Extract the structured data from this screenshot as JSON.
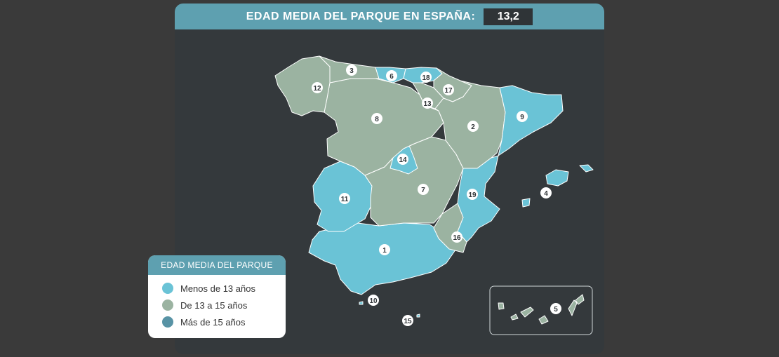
{
  "header": {
    "title": "EDAD MEDIA DEL PARQUE EN ESPAÑA:",
    "value": "13,2"
  },
  "legend": {
    "title": "EDAD MEDIA DEL PARQUE",
    "items": [
      {
        "label": "Menos de 13 años",
        "color": "#6ac3d6"
      },
      {
        "label": "De 13 a 15 años",
        "color": "#9bb3a1"
      },
      {
        "label": "Más de 15 años",
        "color": "#5893a5"
      }
    ]
  },
  "regions": [
    {
      "id": "1",
      "category": "menos-13"
    },
    {
      "id": "2",
      "category": "13-15"
    },
    {
      "id": "3",
      "category": "13-15"
    },
    {
      "id": "4",
      "category": "menos-13"
    },
    {
      "id": "5",
      "category": "13-15"
    },
    {
      "id": "6",
      "category": "menos-13"
    },
    {
      "id": "7",
      "category": "13-15"
    },
    {
      "id": "8",
      "category": "13-15"
    },
    {
      "id": "9",
      "category": "menos-13"
    },
    {
      "id": "10",
      "category": "menos-13"
    },
    {
      "id": "11",
      "category": "menos-13"
    },
    {
      "id": "12",
      "category": "13-15"
    },
    {
      "id": "13",
      "category": "13-15"
    },
    {
      "id": "14",
      "category": "menos-13"
    },
    {
      "id": "15",
      "category": "menos-13"
    },
    {
      "id": "16",
      "category": "13-15"
    },
    {
      "id": "17",
      "category": "13-15"
    },
    {
      "id": "18",
      "category": "menos-13"
    },
    {
      "id": "19",
      "category": "menos-13"
    }
  ]
}
